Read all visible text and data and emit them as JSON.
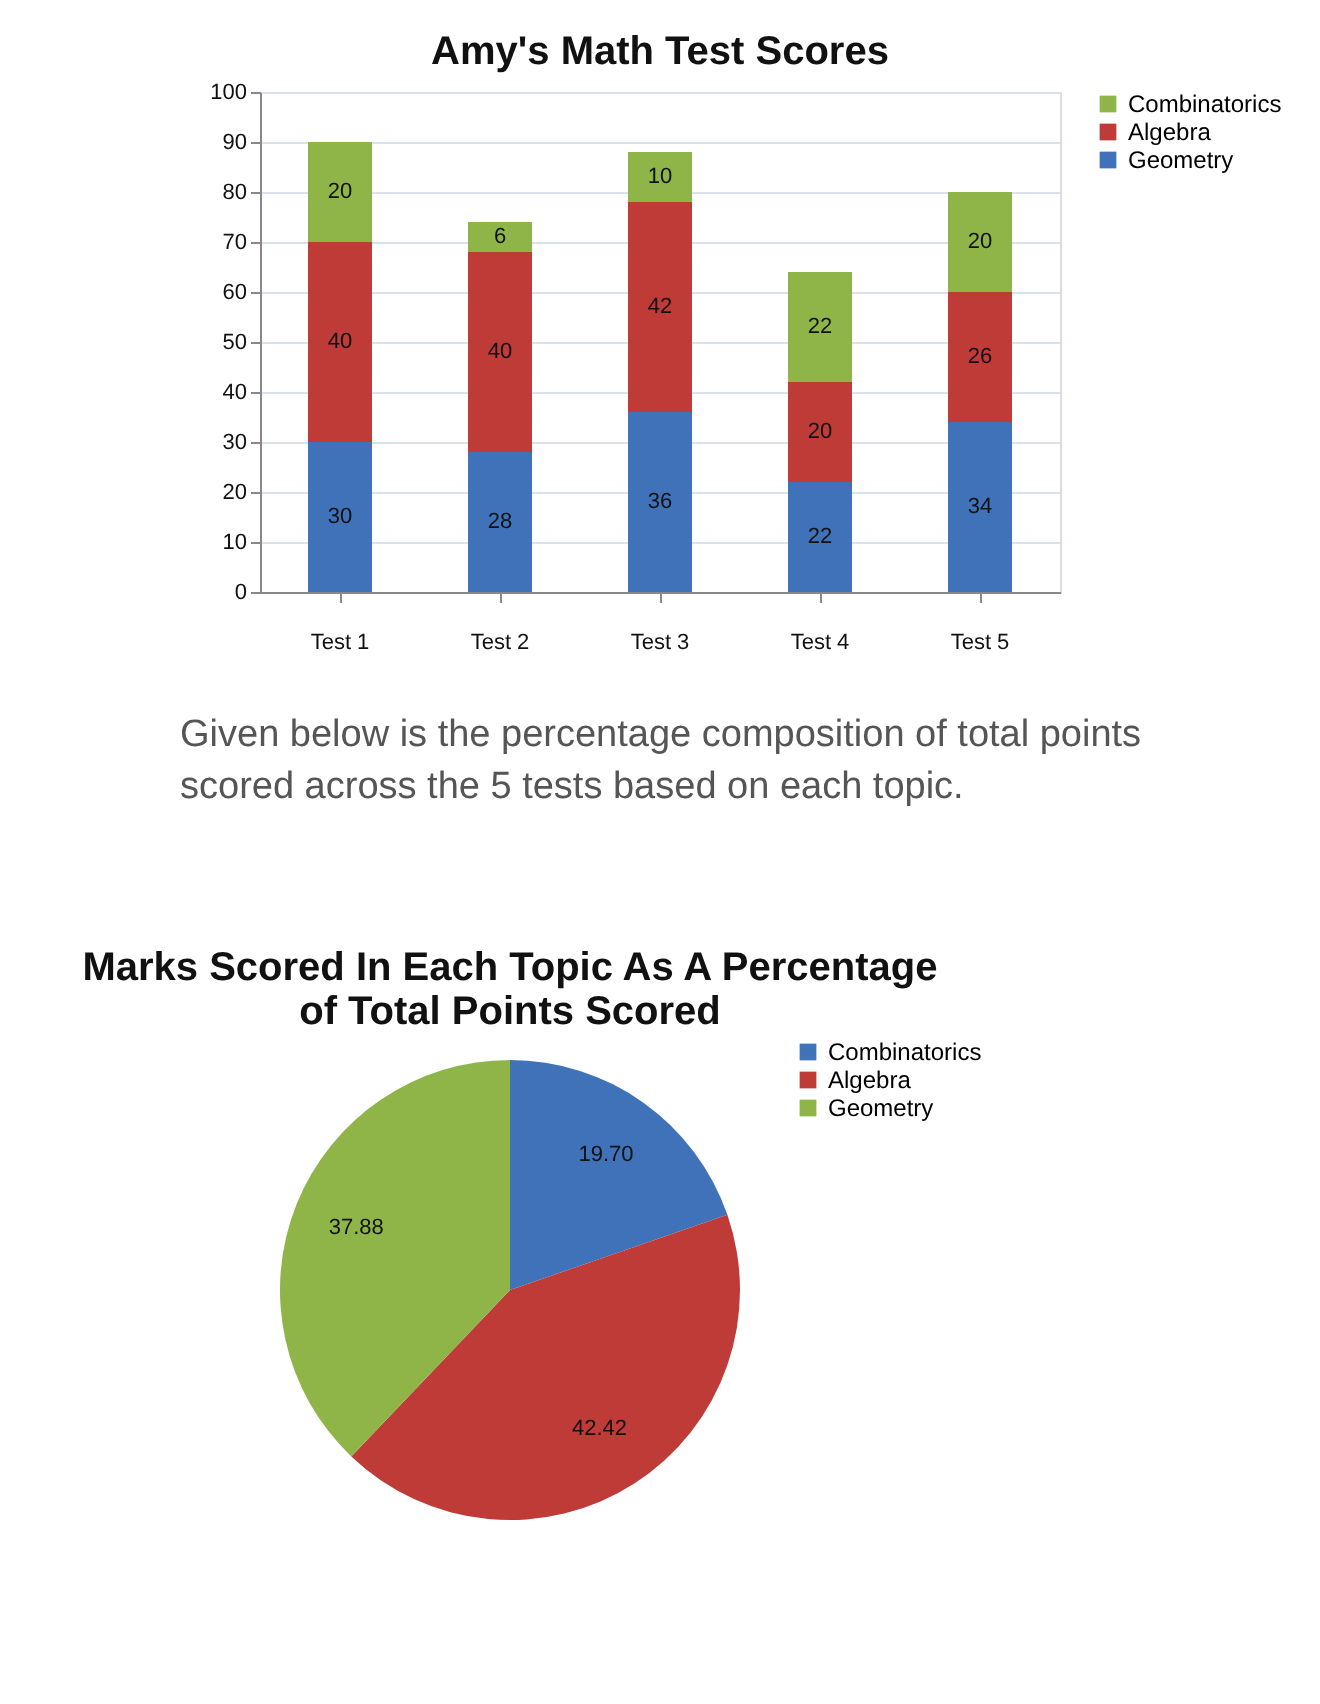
{
  "chart_data": [
    {
      "type": "bar",
      "title": "Amy's Math Test Scores",
      "categories": [
        "Test 1",
        "Test 2",
        "Test 3",
        "Test 4",
        "Test 5"
      ],
      "stacked": true,
      "series": [
        {
          "name": "Geometry",
          "color": "#3f72b8",
          "values": [
            30,
            28,
            36,
            22,
            34
          ]
        },
        {
          "name": "Algebra",
          "color": "#be3b38",
          "values": [
            40,
            40,
            42,
            20,
            26
          ]
        },
        {
          "name": "Combinatorics",
          "color": "#8fb548",
          "values": [
            20,
            6,
            10,
            22,
            20
          ]
        }
      ],
      "ylim": [
        0,
        100
      ],
      "yticks": [
        0,
        10,
        20,
        30,
        40,
        50,
        60,
        70,
        80,
        90,
        100
      ],
      "grid": "y",
      "legend": "right",
      "data_labels": true,
      "annotations": [
        "Given below is the percentage composition of total points scored across the 5 tests based on each topic."
      ]
    },
    {
      "type": "pie",
      "title": "Marks Scored In Each Topic As A Percentage\nof Total Points Scored",
      "categories": [
        "Combinatorics",
        "Algebra",
        "Geometry"
      ],
      "values": [
        19.7,
        42.42,
        37.88
      ],
      "colors": [
        "#3f72b8",
        "#be3b38",
        "#8fb548"
      ],
      "value_labels": [
        "19.70",
        "42.42",
        "37.88"
      ],
      "legend": "right"
    }
  ]
}
